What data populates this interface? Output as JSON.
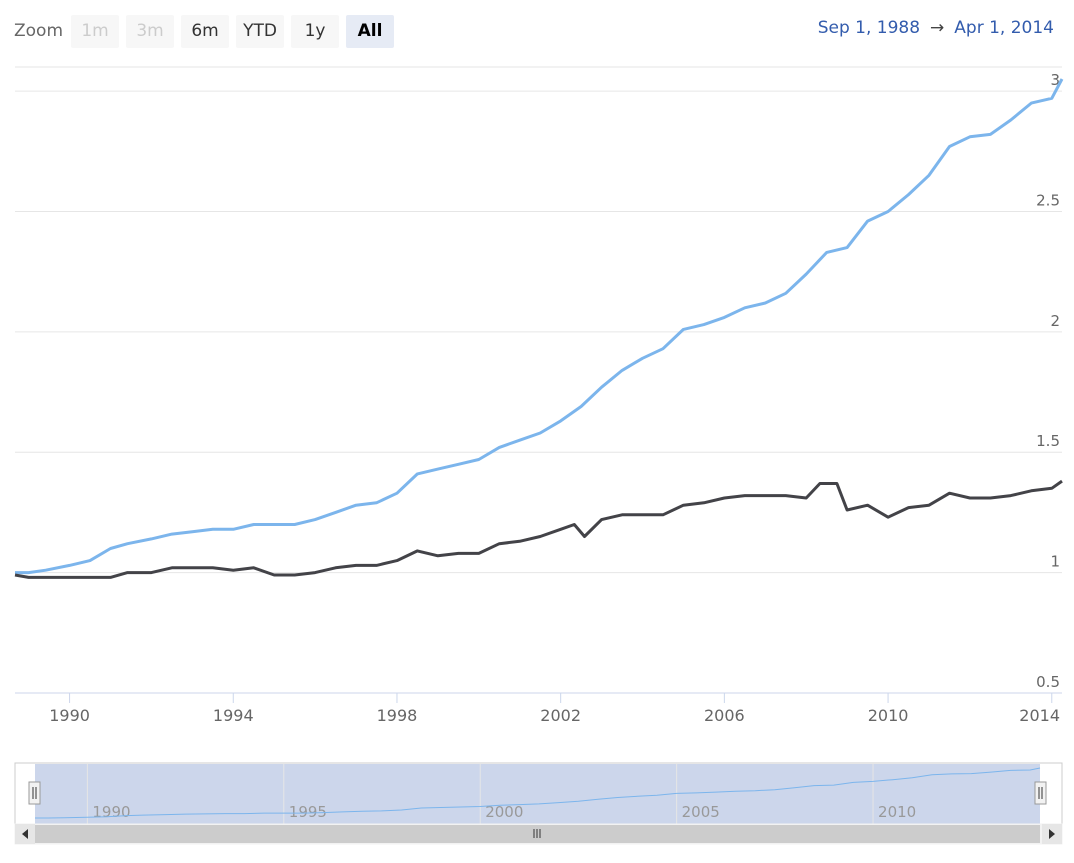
{
  "zoom": {
    "label": "Zoom",
    "buttons": [
      {
        "label": "1m",
        "state": "disabled"
      },
      {
        "label": "3m",
        "state": "disabled"
      },
      {
        "label": "6m",
        "state": "normal"
      },
      {
        "label": "YTD",
        "state": "normal"
      },
      {
        "label": "1y",
        "state": "normal"
      },
      {
        "label": "All",
        "state": "active"
      }
    ]
  },
  "range": {
    "from": "Sep 1, 1988",
    "arrow": "→",
    "to": "Apr 1, 2014"
  },
  "colors": {
    "series_1": "#7cb5ec",
    "series_2": "#434348",
    "navigator_mask": "#ccd6eb",
    "grid": "#e6e6e6"
  },
  "navigator": {
    "ticks": [
      "1990",
      "1995",
      "2000",
      "2005",
      "2010"
    ],
    "handle_left_icon": "grip-icon",
    "handle_right_icon": "grip-icon",
    "scroll_grip_icon": "grip-icon"
  },
  "chart_data": {
    "type": "line",
    "x_ticks": [
      "1990",
      "1994",
      "1998",
      "2002",
      "2006",
      "2010",
      "2014"
    ],
    "y_ticks": [
      "0.5",
      "1",
      "1.5",
      "2",
      "2.5",
      "3"
    ],
    "xlim": [
      "1988-09",
      "2014-04"
    ],
    "ylim": [
      0.5,
      3.1
    ],
    "grid": true,
    "legend": "none",
    "series": [
      {
        "points": [
          [
            "1988-09",
            1.0
          ],
          [
            "1989-01",
            1.0
          ],
          [
            "1989-06",
            1.01
          ],
          [
            "1990-01",
            1.03
          ],
          [
            "1990-07",
            1.05
          ],
          [
            "1991-01",
            1.1
          ],
          [
            "1991-06",
            1.12
          ],
          [
            "1992-01",
            1.14
          ],
          [
            "1992-07",
            1.16
          ],
          [
            "1993-01",
            1.17
          ],
          [
            "1993-07",
            1.18
          ],
          [
            "1994-01",
            1.18
          ],
          [
            "1994-07",
            1.2
          ],
          [
            "1995-01",
            1.2
          ],
          [
            "1995-07",
            1.2
          ],
          [
            "1996-01",
            1.22
          ],
          [
            "1996-07",
            1.25
          ],
          [
            "1997-01",
            1.28
          ],
          [
            "1997-07",
            1.29
          ],
          [
            "1998-01",
            1.33
          ],
          [
            "1998-07",
            1.41
          ],
          [
            "1999-01",
            1.43
          ],
          [
            "1999-07",
            1.45
          ],
          [
            "2000-01",
            1.47
          ],
          [
            "2000-07",
            1.52
          ],
          [
            "2001-01",
            1.55
          ],
          [
            "2001-07",
            1.58
          ],
          [
            "2002-01",
            1.63
          ],
          [
            "2002-07",
            1.69
          ],
          [
            "2003-01",
            1.77
          ],
          [
            "2003-07",
            1.84
          ],
          [
            "2004-01",
            1.89
          ],
          [
            "2004-07",
            1.93
          ],
          [
            "2005-01",
            2.01
          ],
          [
            "2005-07",
            2.03
          ],
          [
            "2006-01",
            2.06
          ],
          [
            "2006-07",
            2.1
          ],
          [
            "2007-01",
            2.12
          ],
          [
            "2007-07",
            2.16
          ],
          [
            "2008-01",
            2.24
          ],
          [
            "2008-07",
            2.33
          ],
          [
            "2009-01",
            2.35
          ],
          [
            "2009-07",
            2.46
          ],
          [
            "2010-01",
            2.5
          ],
          [
            "2010-07",
            2.57
          ],
          [
            "2011-01",
            2.65
          ],
          [
            "2011-07",
            2.77
          ],
          [
            "2012-01",
            2.81
          ],
          [
            "2012-07",
            2.82
          ],
          [
            "2013-01",
            2.88
          ],
          [
            "2013-07",
            2.95
          ],
          [
            "2014-01",
            2.97
          ],
          [
            "2014-04",
            3.05
          ]
        ]
      },
      {
        "points": [
          [
            "1988-09",
            0.99
          ],
          [
            "1989-01",
            0.98
          ],
          [
            "1989-06",
            0.98
          ],
          [
            "1990-01",
            0.98
          ],
          [
            "1990-07",
            0.98
          ],
          [
            "1991-01",
            0.98
          ],
          [
            "1991-06",
            1.0
          ],
          [
            "1992-01",
            1.0
          ],
          [
            "1992-07",
            1.02
          ],
          [
            "1993-01",
            1.02
          ],
          [
            "1993-07",
            1.02
          ],
          [
            "1994-01",
            1.01
          ],
          [
            "1994-07",
            1.02
          ],
          [
            "1995-01",
            0.99
          ],
          [
            "1995-07",
            0.99
          ],
          [
            "1996-01",
            1.0
          ],
          [
            "1996-07",
            1.02
          ],
          [
            "1997-01",
            1.03
          ],
          [
            "1997-07",
            1.03
          ],
          [
            "1998-01",
            1.05
          ],
          [
            "1998-07",
            1.09
          ],
          [
            "1999-01",
            1.07
          ],
          [
            "1999-07",
            1.08
          ],
          [
            "2000-01",
            1.08
          ],
          [
            "2000-07",
            1.12
          ],
          [
            "2001-01",
            1.13
          ],
          [
            "2001-07",
            1.15
          ],
          [
            "2002-01",
            1.18
          ],
          [
            "2002-05",
            1.2
          ],
          [
            "2002-08",
            1.15
          ],
          [
            "2003-01",
            1.22
          ],
          [
            "2003-07",
            1.24
          ],
          [
            "2004-01",
            1.24
          ],
          [
            "2004-07",
            1.24
          ],
          [
            "2005-01",
            1.28
          ],
          [
            "2005-07",
            1.29
          ],
          [
            "2006-01",
            1.31
          ],
          [
            "2006-07",
            1.32
          ],
          [
            "2007-01",
            1.32
          ],
          [
            "2007-07",
            1.32
          ],
          [
            "2008-01",
            1.31
          ],
          [
            "2008-05",
            1.37
          ],
          [
            "2008-10",
            1.37
          ],
          [
            "2009-01",
            1.26
          ],
          [
            "2009-07",
            1.28
          ],
          [
            "2010-01",
            1.23
          ],
          [
            "2010-07",
            1.27
          ],
          [
            "2011-01",
            1.28
          ],
          [
            "2011-07",
            1.33
          ],
          [
            "2012-01",
            1.31
          ],
          [
            "2012-07",
            1.31
          ],
          [
            "2013-01",
            1.32
          ],
          [
            "2013-07",
            1.34
          ],
          [
            "2014-01",
            1.35
          ],
          [
            "2014-04",
            1.38
          ]
        ]
      }
    ]
  }
}
